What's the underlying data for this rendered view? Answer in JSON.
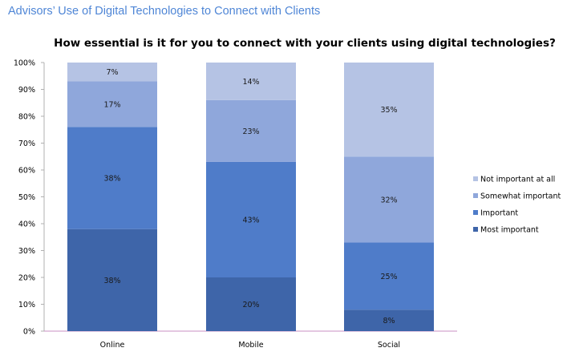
{
  "page_title": "Advisors’ Use of Digital Technologies  to Connect with Clients",
  "chart_data": {
    "type": "bar",
    "stacked": "percent",
    "title": "How essential is it for you to connect with your clients using digital technologies?",
    "xlabel": "",
    "ylabel": "",
    "ylim": [
      0,
      100
    ],
    "yticks": [
      "0%",
      "10%",
      "20%",
      "30%",
      "40%",
      "50%",
      "60%",
      "70%",
      "80%",
      "90%",
      "100%"
    ],
    "categories": [
      "Online",
      "Mobile",
      "Social"
    ],
    "series": [
      {
        "name": "Most important",
        "values": [
          38,
          20,
          8
        ],
        "color": "#3e65a9"
      },
      {
        "name": "Important",
        "values": [
          38,
          43,
          25
        ],
        "color": "#4f7cc9"
      },
      {
        "name": "Somewhat important",
        "values": [
          17,
          23,
          32
        ],
        "color": "#8fa7db"
      },
      {
        "name": "Not important at all",
        "values": [
          7,
          14,
          35
        ],
        "color": "#b5c3e4"
      }
    ],
    "legend_position": "right",
    "grid": false
  }
}
